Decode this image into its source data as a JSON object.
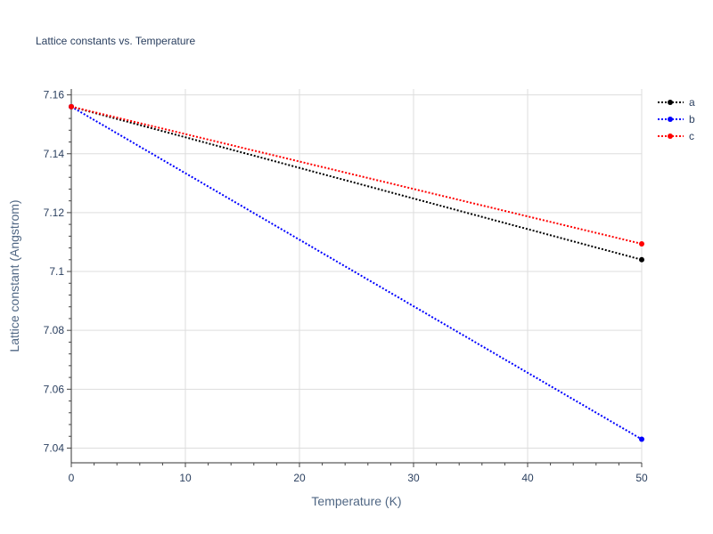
{
  "chart_data": {
    "type": "line",
    "title": "Lattice constants vs. Temperature",
    "xlabel": "Temperature (K)",
    "ylabel": "Lattice constant (Angstrom)",
    "xlim": [
      0,
      50
    ],
    "ylim": [
      7.035,
      7.162
    ],
    "x_ticks": [
      0,
      10,
      20,
      30,
      40,
      50
    ],
    "y_ticks": [
      7.04,
      7.06,
      7.08,
      7.1,
      7.12,
      7.14,
      7.16
    ],
    "x_tick_labels": [
      "0",
      "10",
      "20",
      "30",
      "40",
      "50"
    ],
    "y_tick_labels": [
      "7.04",
      "7.06",
      "7.08",
      "7.1",
      "7.12",
      "7.14",
      "7.16"
    ],
    "grid": true,
    "legend_position": "top-right",
    "line_style": "dotted",
    "x": [
      0,
      50
    ],
    "series": [
      {
        "name": "a",
        "color": "#000000",
        "values": [
          7.156,
          7.104
        ]
      },
      {
        "name": "b",
        "color": "#0000ff",
        "values": [
          7.156,
          7.043
        ]
      },
      {
        "name": "c",
        "color": "#ff0000",
        "values": [
          7.156,
          7.1094
        ]
      }
    ]
  }
}
